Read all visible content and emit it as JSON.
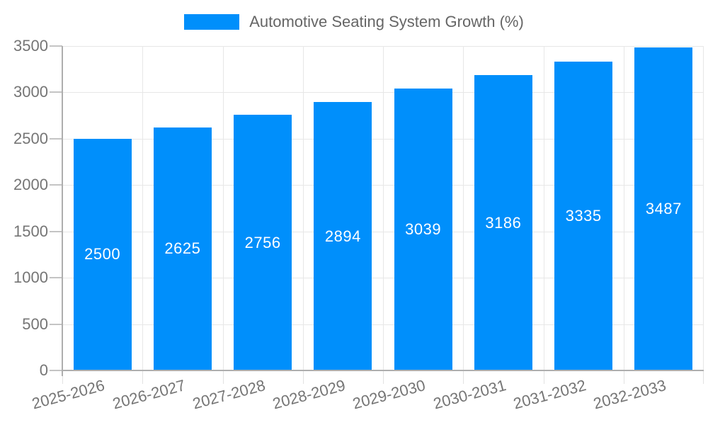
{
  "chart_data": {
    "type": "bar",
    "title": "Automotive Seating System Growth (%)",
    "categories": [
      "2025-2026",
      "2026-2027",
      "2027-2028",
      "2028-2029",
      "2029-2030",
      "2030-2031",
      "2031-2032",
      "2032-2033"
    ],
    "values": [
      2500,
      2625,
      2756,
      2894,
      3039,
      3186,
      3335,
      3487
    ],
    "ylim": [
      0,
      3500
    ],
    "yticks": [
      0,
      500,
      1000,
      1500,
      2000,
      2500,
      3000,
      3500
    ],
    "legend_position": "top",
    "grid": true,
    "x_label_rotation": -15,
    "colors": {
      "bar": "#008FFB",
      "bar_label": "#ffffff",
      "gridline": "#e7e7e7",
      "axis_line": "#aeaeae",
      "y_tick": "#c4c4c4",
      "x_tick": "#e2e2e2",
      "tick_label": "#757575",
      "legend_text": "#666666"
    }
  }
}
